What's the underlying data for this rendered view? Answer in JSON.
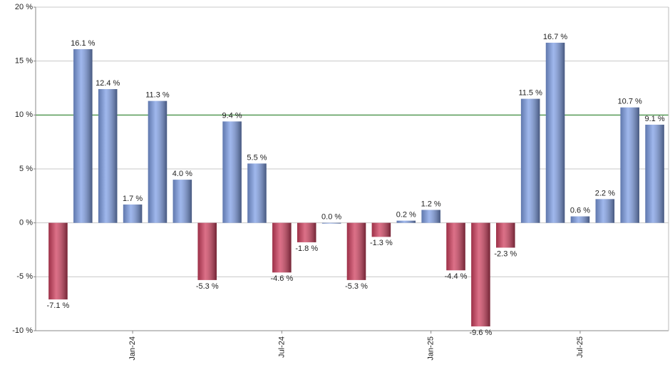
{
  "chart_data": {
    "type": "bar",
    "categories": [
      null,
      null,
      null,
      "Jan-24",
      null,
      null,
      null,
      null,
      null,
      "Jul-24",
      null,
      null,
      null,
      null,
      null,
      "Jan-25",
      null,
      null,
      null,
      null,
      null,
      "Jul-25",
      null,
      null,
      null
    ],
    "values": [
      -7.1,
      16.1,
      12.4,
      1.7,
      11.3,
      4.0,
      -5.3,
      9.4,
      5.5,
      -4.6,
      -1.8,
      0.0,
      -5.3,
      -1.3,
      0.2,
      1.2,
      -4.4,
      -9.6,
      -2.3,
      11.5,
      16.7,
      0.6,
      2.2,
      10.7,
      9.1
    ],
    "value_labels": [
      "-7.1 %",
      "16.1 %",
      "12.4 %",
      "1.7 %",
      "11.3 %",
      "4.0 %",
      "-5.3 %",
      "9.4 %",
      "5.5 %",
      "-4.6 %",
      "-1.8 %",
      "0.0 %",
      "-5.3 %",
      "-1.3 %",
      "0.2 %",
      "1.2 %",
      "-4.4 %",
      "-9.6 %",
      "-2.3 %",
      "11.5 %",
      "16.7 %",
      "0.6 %",
      "2.2 %",
      "10.7 %",
      "9.1 %"
    ],
    "colors": {
      "positive": "#7f9fe6",
      "negative": "#d0405f"
    },
    "ylim": [
      -10,
      20
    ],
    "yticks": [
      {
        "value": -10,
        "label": "-10 %"
      },
      {
        "value": -5,
        "label": "-5 %"
      },
      {
        "value": 0,
        "label": "0 %"
      },
      {
        "value": 5,
        "label": "5 %"
      },
      {
        "value": 10,
        "label": "10 %"
      },
      {
        "value": 15,
        "label": "15 %"
      },
      {
        "value": 20,
        "label": "20 %"
      }
    ],
    "grid": true,
    "reference_line": {
      "value": 10,
      "color": "#1a7a1a"
    }
  }
}
